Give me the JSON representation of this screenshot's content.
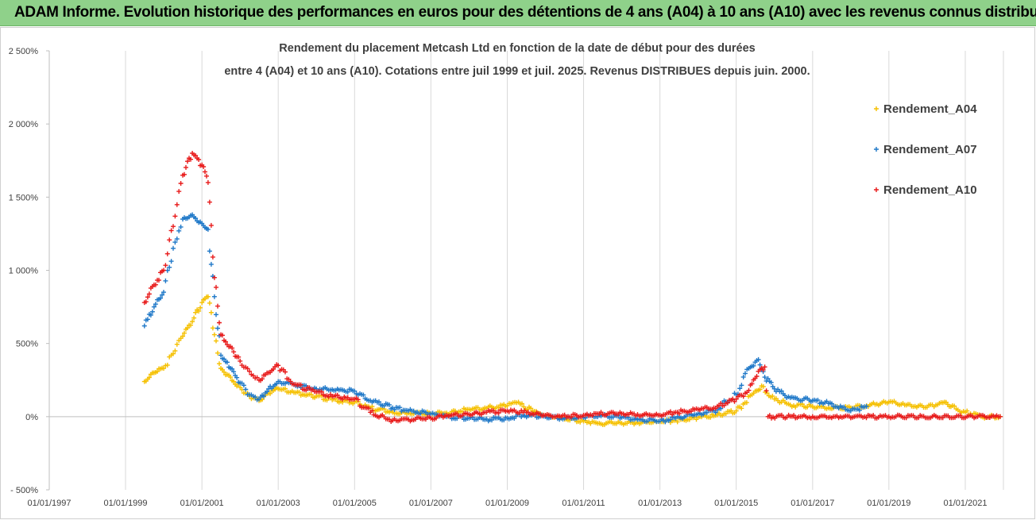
{
  "banner": {
    "title": "ADAM Informe. Evolution historique des performances en euros pour des détentions de 4 ans (A04) à 10 ans (A10) avec les revenus connus distribués"
  },
  "colors": {
    "banner_bg": "#8fd18a",
    "A04": "#f5c000",
    "A07": "#1f78c8",
    "A10": "#e81a1a",
    "grid": "#d9d9d9"
  },
  "chart_data": {
    "type": "scatter",
    "title_lines": [
      "Rendement du placement Metcash Ltd en fonction de la date de début pour des durées",
      "entre 4 (A04) et 10 ans (A10). Cotations entre juil 1999 et juil. 2025. Revenus DISTRIBUES depuis juin. 2000."
    ],
    "xlim": [
      "1997-01-01",
      "2022-01-01"
    ],
    "ylim": [
      -500,
      2500
    ],
    "y_unit": "%",
    "x_ticks": [
      "01/01/1997",
      "01/01/1999",
      "01/01/2001",
      "01/01/2003",
      "01/01/2005",
      "01/01/2007",
      "01/01/2009",
      "01/01/2011",
      "01/01/2013",
      "01/01/2015",
      "01/01/2017",
      "01/01/2019",
      "01/01/2021"
    ],
    "x_tick_dates": [
      "1997-01-01",
      "1999-01-01",
      "2001-01-01",
      "2003-01-01",
      "2005-01-01",
      "2007-01-01",
      "2009-01-01",
      "2011-01-01",
      "2013-01-01",
      "2015-01-01",
      "2017-01-01",
      "2019-01-01",
      "2021-01-01"
    ],
    "y_ticks": [
      "2 500%",
      "2 000%",
      "1 500%",
      "1 000%",
      "500%",
      "0%",
      "- 500%"
    ],
    "y_tick_values": [
      2500,
      2000,
      1500,
      1000,
      500,
      0,
      -500
    ],
    "grid": "vertical",
    "legend_position": "right",
    "marker": "plus",
    "series": [
      {
        "name": "Rendement_A04",
        "color": "#f5c000",
        "points": [
          [
            "1999-07-01",
            240
          ],
          [
            "1999-10-01",
            300
          ],
          [
            "2000-01-01",
            330
          ],
          [
            "2000-04-01",
            430
          ],
          [
            "2000-07-01",
            550
          ],
          [
            "2000-10-01",
            650
          ],
          [
            "2001-01-01",
            780
          ],
          [
            "2001-03-01",
            820
          ],
          [
            "2001-05-01",
            560
          ],
          [
            "2001-07-01",
            330
          ],
          [
            "2001-10-01",
            270
          ],
          [
            "2002-01-01",
            200
          ],
          [
            "2002-04-01",
            140
          ],
          [
            "2002-07-01",
            110
          ],
          [
            "2002-10-01",
            160
          ],
          [
            "2003-01-01",
            190
          ],
          [
            "2003-06-01",
            165
          ],
          [
            "2004-01-01",
            140
          ],
          [
            "2004-06-01",
            115
          ],
          [
            "2005-01-01",
            100
          ],
          [
            "2005-06-01",
            60
          ],
          [
            "2006-01-01",
            30
          ],
          [
            "2006-06-01",
            25
          ],
          [
            "2007-01-01",
            20
          ],
          [
            "2007-06-01",
            25
          ],
          [
            "2008-01-01",
            50
          ],
          [
            "2008-06-01",
            60
          ],
          [
            "2009-01-01",
            75
          ],
          [
            "2009-04-01",
            95
          ],
          [
            "2009-09-01",
            40
          ],
          [
            "2010-01-01",
            10
          ],
          [
            "2010-06-01",
            -10
          ],
          [
            "2011-01-01",
            -30
          ],
          [
            "2011-06-01",
            -45
          ],
          [
            "2012-01-01",
            -45
          ],
          [
            "2012-06-01",
            -40
          ],
          [
            "2013-01-01",
            -35
          ],
          [
            "2013-06-01",
            -25
          ],
          [
            "2014-01-01",
            -5
          ],
          [
            "2014-06-01",
            5
          ],
          [
            "2015-01-01",
            40
          ],
          [
            "2015-06-01",
            150
          ],
          [
            "2015-09-01",
            210
          ],
          [
            "2016-01-01",
            120
          ],
          [
            "2016-06-01",
            80
          ],
          [
            "2017-01-01",
            70
          ],
          [
            "2017-06-01",
            60
          ],
          [
            "2018-01-01",
            60
          ],
          [
            "2018-06-01",
            75
          ],
          [
            "2019-01-01",
            100
          ],
          [
            "2019-06-01",
            80
          ],
          [
            "2020-01-01",
            65
          ],
          [
            "2020-06-01",
            95
          ],
          [
            "2020-09-01",
            75
          ],
          [
            "2021-01-01",
            30
          ],
          [
            "2021-06-01",
            0
          ],
          [
            "2021-12-01",
            0
          ]
        ]
      },
      {
        "name": "Rendement_A07",
        "color": "#1f78c8",
        "points": [
          [
            "1999-07-01",
            620
          ],
          [
            "1999-10-01",
            750
          ],
          [
            "2000-01-01",
            850
          ],
          [
            "2000-04-01",
            1150
          ],
          [
            "2000-07-01",
            1350
          ],
          [
            "2000-10-01",
            1380
          ],
          [
            "2001-01-01",
            1320
          ],
          [
            "2001-03-01",
            1280
          ],
          [
            "2001-05-01",
            820
          ],
          [
            "2001-07-01",
            420
          ],
          [
            "2001-10-01",
            330
          ],
          [
            "2002-01-01",
            230
          ],
          [
            "2002-04-01",
            150
          ],
          [
            "2002-07-01",
            120
          ],
          [
            "2002-10-01",
            190
          ],
          [
            "2003-01-01",
            240
          ],
          [
            "2003-06-01",
            220
          ],
          [
            "2004-01-01",
            190
          ],
          [
            "2004-06-01",
            185
          ],
          [
            "2005-01-01",
            175
          ],
          [
            "2005-06-01",
            110
          ],
          [
            "2006-01-01",
            60
          ],
          [
            "2006-06-01",
            40
          ],
          [
            "2007-01-01",
            20
          ],
          [
            "2007-06-01",
            0
          ],
          [
            "2008-01-01",
            -10
          ],
          [
            "2008-06-01",
            -20
          ],
          [
            "2009-01-01",
            -10
          ],
          [
            "2009-06-01",
            10
          ],
          [
            "2010-01-01",
            0
          ],
          [
            "2010-06-01",
            -10
          ],
          [
            "2011-01-01",
            -5
          ],
          [
            "2011-06-01",
            10
          ],
          [
            "2012-01-01",
            -5
          ],
          [
            "2012-06-01",
            -20
          ],
          [
            "2013-01-01",
            -30
          ],
          [
            "2013-06-01",
            -10
          ],
          [
            "2014-01-01",
            20
          ],
          [
            "2014-06-01",
            40
          ],
          [
            "2015-01-01",
            150
          ],
          [
            "2015-05-01",
            330
          ],
          [
            "2015-08-01",
            390
          ],
          [
            "2015-10-01",
            270
          ],
          [
            "2016-01-01",
            190
          ],
          [
            "2016-06-01",
            130
          ],
          [
            "2017-01-01",
            110
          ],
          [
            "2017-06-01",
            90
          ],
          [
            "2018-01-01",
            40
          ],
          [
            "2018-06-01",
            70
          ]
        ]
      },
      {
        "name": "Rendement_A10",
        "color": "#e81a1a",
        "points": [
          [
            "1999-07-01",
            780
          ],
          [
            "1999-10-01",
            900
          ],
          [
            "2000-01-01",
            1000
          ],
          [
            "2000-04-01",
            1300
          ],
          [
            "2000-07-01",
            1650
          ],
          [
            "2000-10-01",
            1800
          ],
          [
            "2001-01-01",
            1720
          ],
          [
            "2001-03-01",
            1600
          ],
          [
            "2001-05-01",
            950
          ],
          [
            "2001-07-01",
            560
          ],
          [
            "2001-10-01",
            480
          ],
          [
            "2002-01-01",
            380
          ],
          [
            "2002-04-01",
            310
          ],
          [
            "2002-07-01",
            250
          ],
          [
            "2002-10-01",
            300
          ],
          [
            "2003-01-01",
            350
          ],
          [
            "2003-06-01",
            220
          ],
          [
            "2004-01-01",
            170
          ],
          [
            "2004-06-01",
            140
          ],
          [
            "2005-01-01",
            120
          ],
          [
            "2005-06-01",
            30
          ],
          [
            "2006-01-01",
            -25
          ],
          [
            "2006-06-01",
            -20
          ],
          [
            "2007-01-01",
            -10
          ],
          [
            "2007-06-01",
            10
          ],
          [
            "2008-01-01",
            15
          ],
          [
            "2008-06-01",
            30
          ],
          [
            "2009-01-01",
            40
          ],
          [
            "2009-06-01",
            30
          ],
          [
            "2010-01-01",
            10
          ],
          [
            "2010-06-01",
            0
          ],
          [
            "2011-01-01",
            10
          ],
          [
            "2011-06-01",
            20
          ],
          [
            "2012-01-01",
            20
          ],
          [
            "2012-06-01",
            15
          ],
          [
            "2013-01-01",
            10
          ],
          [
            "2013-06-01",
            30
          ],
          [
            "2014-01-01",
            50
          ],
          [
            "2014-06-01",
            60
          ],
          [
            "2015-01-01",
            120
          ],
          [
            "2015-05-01",
            180
          ],
          [
            "2015-08-01",
            310
          ],
          [
            "2015-10-01",
            340
          ],
          [
            "2015-11-01",
            0
          ],
          [
            "2017-01-01",
            0
          ],
          [
            "2019-01-01",
            0
          ],
          [
            "2021-12-01",
            0
          ]
        ]
      }
    ]
  }
}
